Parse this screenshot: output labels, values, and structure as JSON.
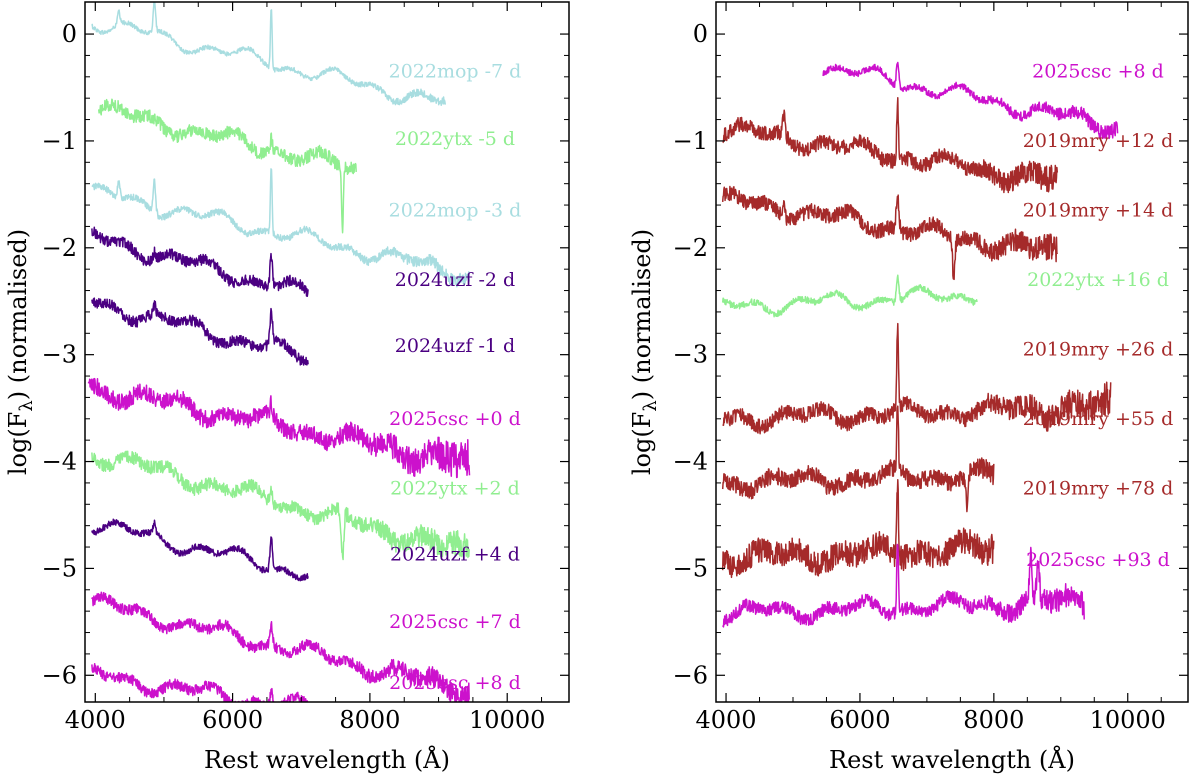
{
  "chart_data": [
    {
      "type": "line",
      "panel": "left",
      "xlabel": "Rest wavelength (Å)",
      "ylabel_prefix": "log(F",
      "ylabel_sub": "λ",
      "ylabel_suffix": ") (normalised)",
      "xlim": [
        3850,
        10900
      ],
      "ylim": [
        -6.25,
        0.3
      ],
      "xticks": [
        4000,
        6000,
        8000,
        10000
      ],
      "yticks": [
        0,
        -1,
        -2,
        -3,
        -4,
        -5,
        -6
      ],
      "series": [
        {
          "name": "2022mop -7 d",
          "color": "#a8dde0",
          "x_range": [
            3950,
            9100
          ],
          "offset": 0.12,
          "slope": -0.15,
          "noise": 0.02,
          "lines": [
            [
              4340,
              0.12
            ],
            [
              4861,
              0.3
            ],
            [
              6563,
              0.55
            ]
          ],
          "label": "2022mop -7 d",
          "label_y": -0.35
        },
        {
          "name": "2022ytx -5 d",
          "color": "#90ee90",
          "x_range": [
            4050,
            7800
          ],
          "offset": -0.7,
          "slope": -0.15,
          "noise": 0.06,
          "lines": [
            [
              6563,
              0.12
            ],
            [
              7600,
              -0.6
            ]
          ],
          "label": "2022ytx -5 d",
          "label_y": -0.98
        },
        {
          "name": "2022mop -3 d",
          "color": "#a8dde0",
          "x_range": [
            3950,
            9450
          ],
          "offset": -1.48,
          "slope": -0.14,
          "noise": 0.03,
          "lines": [
            [
              4340,
              0.15
            ],
            [
              4861,
              0.3
            ],
            [
              6563,
              0.6
            ]
          ],
          "label": "2022mop -3 d",
          "label_y": -1.65
        },
        {
          "name": "2024uzf -2 d",
          "color": "#4b0082",
          "x_range": [
            3950,
            7100
          ],
          "offset": -1.9,
          "slope": -0.17,
          "noise": 0.05,
          "lines": [
            [
              4861,
              0.08
            ],
            [
              6563,
              0.3
            ]
          ],
          "label": "2024uzf -2 d",
          "label_y": -2.3
        },
        {
          "name": "2024uzf -1 d",
          "color": "#4b0082",
          "x_range": [
            3950,
            7100
          ],
          "offset": -2.5,
          "slope": -0.17,
          "noise": 0.05,
          "lines": [
            [
              4861,
              0.08
            ],
            [
              6563,
              0.3
            ]
          ],
          "label": "2024uzf -1 d",
          "label_y": -2.92
        },
        {
          "name": "2025csc +0 d",
          "color": "#cc11cc",
          "x_range": [
            3900,
            9450
          ],
          "offset": -3.3,
          "slope": -0.13,
          "noise": 0.08,
          "lines": [
            [
              6563,
              0.12
            ]
          ],
          "label": "2025csc +0 d",
          "label_y": -3.6
        },
        {
          "name": "2022ytx +2 d",
          "color": "#90ee90",
          "x_range": [
            3950,
            9450
          ],
          "offset": -3.92,
          "slope": -0.17,
          "noise": 0.06,
          "lines": [
            [
              6563,
              0.14
            ],
            [
              7600,
              -0.45
            ]
          ],
          "label": "2022ytx +2 d",
          "label_y": -4.25
        },
        {
          "name": "2024uzf +4 d",
          "color": "#4b0082",
          "x_range": [
            3950,
            7100
          ],
          "offset": -4.58,
          "slope": -0.15,
          "noise": 0.03,
          "lines": [
            [
              4861,
              0.1
            ],
            [
              6563,
              0.3
            ]
          ],
          "label": "2024uzf +4 d",
          "label_y": -4.87
        },
        {
          "name": "2025csc +7 d",
          "color": "#cc11cc",
          "x_range": [
            3950,
            9450
          ],
          "offset": -5.32,
          "slope": -0.15,
          "noise": 0.05,
          "lines": [
            [
              6563,
              0.18
            ]
          ],
          "label": "2025csc +7 d",
          "label_y": -5.5
        },
        {
          "name": "2025csc +8 d",
          "color": "#cc11cc",
          "x_range": [
            3950,
            7600
          ],
          "offset": -6.0,
          "slope": -0.1,
          "noise": 0.05,
          "lines": [
            [
              6563,
              0.15
            ]
          ],
          "label": "2025csc +8 d",
          "label_y": -6.07
        }
      ]
    },
    {
      "type": "line",
      "panel": "right",
      "xlabel": "Rest wavelength (Å)",
      "ylabel_prefix": "log(F",
      "ylabel_sub": "λ",
      "ylabel_suffix": ") (normalised)",
      "xlim": [
        3850,
        10900
      ],
      "ylim": [
        -6.25,
        0.3
      ],
      "xticks": [
        4000,
        6000,
        8000,
        10000
      ],
      "yticks": [
        0,
        -1,
        -2,
        -3,
        -4,
        -5,
        -6
      ],
      "series": [
        {
          "name": "2025csc +8 d",
          "color": "#cc11cc",
          "x_range": [
            5450,
            9850
          ],
          "offset": -0.3,
          "slope": -0.13,
          "noise": 0.03,
          "lines": [
            [
              6563,
              0.25
            ]
          ],
          "label": "2025csc +8 d",
          "label_y": -0.35
        },
        {
          "name": "2019mry +12 d",
          "color": "#a52a2a",
          "x_range": [
            3950,
            8950
          ],
          "offset": -0.88,
          "slope": -0.1,
          "noise": 0.07,
          "lines": [
            [
              4861,
              0.18
            ],
            [
              6563,
              0.55
            ]
          ],
          "label": "2019mry +12 d",
          "label_y": -1.0
        },
        {
          "name": "2019mry +14 d",
          "color": "#a52a2a",
          "x_range": [
            3950,
            8950
          ],
          "offset": -1.55,
          "slope": -0.1,
          "noise": 0.07,
          "lines": [
            [
              4861,
              0.15
            ],
            [
              6563,
              0.35
            ],
            [
              7400,
              -0.35
            ]
          ],
          "label": "2019mry +14 d",
          "label_y": -1.65
        },
        {
          "name": "2022ytx +16 d",
          "color": "#90ee90",
          "x_range": [
            3950,
            7750
          ],
          "offset": -2.55,
          "slope": 0.03,
          "noise": 0.03,
          "lines": [
            [
              6563,
              0.25
            ]
          ],
          "label": "2022ytx +16 d",
          "label_y": -2.3
        },
        {
          "name": "2019mry +26 d",
          "color": "#a52a2a",
          "x_range": [
            3950,
            9750
          ],
          "offset": -3.6,
          "slope": 0.02,
          "noise": 0.07,
          "lines": [
            [
              6563,
              0.75
            ]
          ],
          "label": "2019mry +26 d",
          "label_y": -2.95
        },
        {
          "name": "2019mry +55 d",
          "color": "#a52a2a",
          "x_range": [
            3950,
            8000
          ],
          "offset": -4.2,
          "slope": 0.02,
          "noise": 0.08,
          "lines": [
            [
              6563,
              0.65
            ],
            [
              7600,
              -0.3
            ]
          ],
          "label": "2019mry +55 d",
          "label_y": -3.6
        },
        {
          "name": "2019mry +78 d",
          "color": "#a52a2a",
          "x_range": [
            3950,
            8000
          ],
          "offset": -4.9,
          "slope": 0.02,
          "noise": 0.12,
          "lines": [
            [
              6563,
              0.7
            ]
          ],
          "label": "2019mry +78 d",
          "label_y": -4.25
        },
        {
          "name": "2025csc +93 d",
          "color": "#cc11cc",
          "x_range": [
            3950,
            9350
          ],
          "offset": -5.42,
          "slope": 0.02,
          "noise": 0.06,
          "lines": [
            [
              6563,
              0.7
            ],
            [
              8550,
              0.4
            ],
            [
              8660,
              0.4
            ]
          ],
          "label": "2025csc +93 d",
          "label_y": -4.92
        }
      ]
    }
  ]
}
